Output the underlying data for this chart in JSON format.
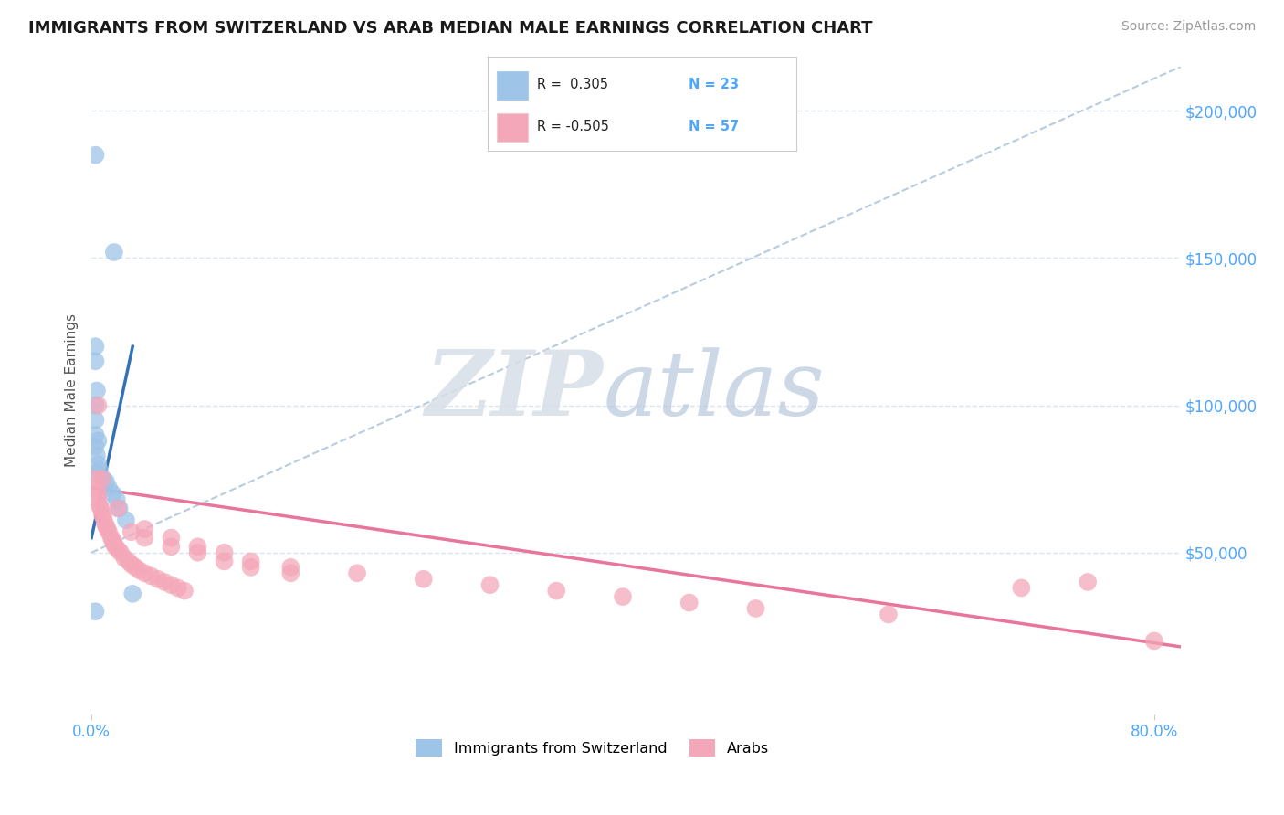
{
  "title": "IMMIGRANTS FROM SWITZERLAND VS ARAB MEDIAN MALE EARNINGS CORRELATION CHART",
  "source": "Source: ZipAtlas.com",
  "ylabel": "Median Male Earnings",
  "xlim": [
    0.0,
    0.82
  ],
  "ylim": [
    -5000,
    215000
  ],
  "yticks": [
    50000,
    100000,
    150000,
    200000
  ],
  "ytick_labels": [
    "$50,000",
    "$100,000",
    "$150,000",
    "$200,000"
  ],
  "xticks": [
    0.0,
    0.8
  ],
  "xtick_labels": [
    "0.0%",
    "80.0%"
  ],
  "swiss_color": "#9ec4e8",
  "arab_color": "#f4a7b9",
  "swiss_line_color": "#3472b5",
  "arab_line_color": "#e8759a",
  "dash_line_color": "#b8ccdf",
  "background_color": "#ffffff",
  "grid_color": "#d8e4f0",
  "title_color": "#1a1a1a",
  "right_tick_color": "#4da6ff",
  "source_color": "#999999",
  "swiss_dots_x": [
    0.003,
    0.017,
    0.003,
    0.003,
    0.004,
    0.003,
    0.003,
    0.003,
    0.003,
    0.004,
    0.005,
    0.006,
    0.009,
    0.011,
    0.013,
    0.016,
    0.019,
    0.021,
    0.026,
    0.031,
    0.003,
    0.004,
    0.005
  ],
  "swiss_dots_y": [
    185000,
    152000,
    120000,
    115000,
    105000,
    100000,
    95000,
    90000,
    86000,
    83000,
    80000,
    78000,
    75000,
    74000,
    72000,
    70000,
    68000,
    65000,
    61000,
    36000,
    30000,
    77000,
    88000
  ],
  "arab_dots_x": [
    0.003,
    0.004,
    0.005,
    0.005,
    0.006,
    0.007,
    0.008,
    0.009,
    0.01,
    0.011,
    0.012,
    0.013,
    0.015,
    0.016,
    0.017,
    0.018,
    0.02,
    0.022,
    0.025,
    0.028,
    0.03,
    0.033,
    0.036,
    0.04,
    0.045,
    0.05,
    0.055,
    0.06,
    0.065,
    0.07,
    0.005,
    0.008,
    0.02,
    0.03,
    0.04,
    0.06,
    0.08,
    0.1,
    0.12,
    0.15,
    0.04,
    0.06,
    0.08,
    0.1,
    0.12,
    0.15,
    0.2,
    0.25,
    0.3,
    0.35,
    0.4,
    0.45,
    0.5,
    0.6,
    0.7,
    0.75,
    0.8
  ],
  "arab_dots_y": [
    75000,
    72000,
    70000,
    68000,
    66000,
    65000,
    63000,
    62000,
    60000,
    59000,
    58000,
    57000,
    55000,
    54000,
    53000,
    52000,
    51000,
    50000,
    48000,
    47000,
    46000,
    45000,
    44000,
    43000,
    42000,
    41000,
    40000,
    39000,
    38000,
    37000,
    100000,
    75000,
    65000,
    57000,
    55000,
    52000,
    50000,
    47000,
    45000,
    43000,
    58000,
    55000,
    52000,
    50000,
    47000,
    45000,
    43000,
    41000,
    39000,
    37000,
    35000,
    33000,
    31000,
    29000,
    38000,
    40000,
    20000
  ],
  "swiss_line_x": [
    0.0,
    0.031
  ],
  "swiss_line_y": [
    55000,
    120000
  ],
  "arab_line_x": [
    0.0,
    0.82
  ],
  "arab_line_y": [
    72000,
    18000
  ],
  "dash_line_x": [
    0.0,
    0.82
  ],
  "dash_line_y": [
    50000,
    215000
  ],
  "legend_r1": "R =  0.305",
  "legend_n1": "N = 23",
  "legend_r2": "R = -0.505",
  "legend_n2": "N = 57",
  "legend_label1": "Immigrants from Switzerland",
  "legend_label2": "Arabs"
}
